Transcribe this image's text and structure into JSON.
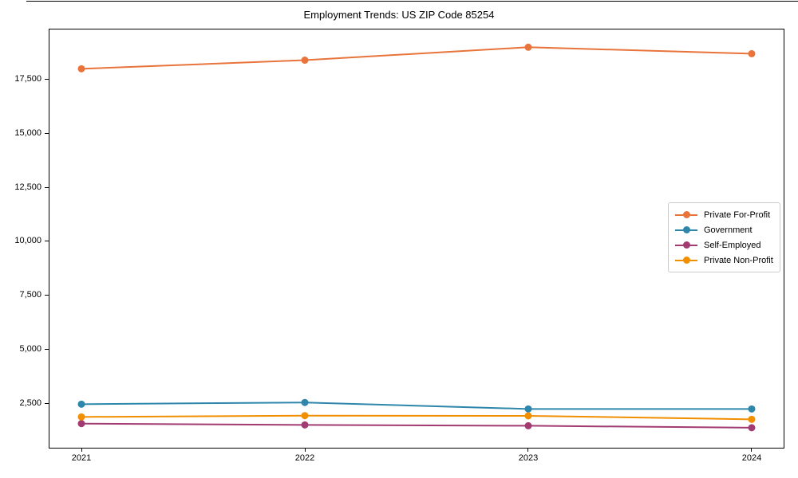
{
  "header": {
    "title": "Employment Trends: US ZIP Code 85254"
  },
  "chart_data": {
    "type": "line",
    "title": "Employment Trends: US ZIP Code 85254",
    "categories": [
      "2021",
      "2022",
      "2023",
      "2024"
    ],
    "series": [
      {
        "name": "Private For-Profit",
        "color": "#E8743B",
        "values": [
          18000,
          18400,
          19000,
          18700
        ]
      },
      {
        "name": "Government",
        "color": "#2E86AB",
        "values": [
          2450,
          2530,
          2230,
          2230
        ]
      },
      {
        "name": "Self-Employed",
        "color": "#A23B72",
        "values": [
          1550,
          1490,
          1450,
          1360
        ]
      },
      {
        "name": "Private Non-Profit",
        "color": "#F18F01",
        "values": [
          1860,
          1920,
          1910,
          1750
        ]
      }
    ],
    "xlabel": "",
    "ylabel": "",
    "ylim": [
      395,
      19860
    ],
    "yticks": {
      "values": [
        2500,
        5000,
        7500,
        10000,
        12500,
        15000,
        17500
      ],
      "labels": [
        "2,500",
        "5,000",
        "7,500",
        "10,000",
        "12,500",
        "15,000",
        "17,500"
      ]
    },
    "grid": false,
    "legend_position": "center-right",
    "marker": "circle",
    "line_width": 2,
    "spine_color": "#000000"
  }
}
